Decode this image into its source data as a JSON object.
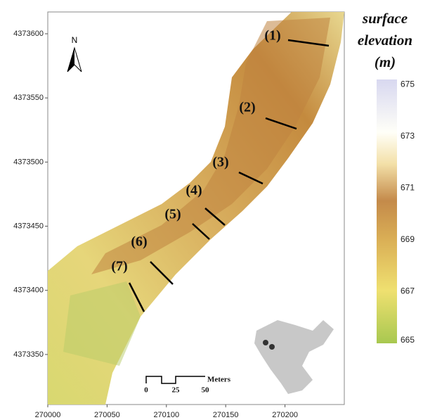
{
  "title": [
    "surface",
    "elevation",
    "(m)"
  ],
  "x_axis": {
    "xlim": [
      270000,
      270250
    ],
    "ticks": [
      270000,
      270050,
      270100,
      270150,
      270200
    ]
  },
  "y_axis": {
    "ylim": [
      4373311,
      4373617
    ],
    "ticks": [
      4373600,
      4373550,
      4373500,
      4373450,
      4373400,
      4373350
    ]
  },
  "colorbar": {
    "range": [
      665,
      675.2
    ],
    "ticks": [
      675,
      673,
      671,
      669,
      667,
      665
    ]
  },
  "profiles": [
    "(1)",
    "(2)",
    "(3)",
    "(4)",
    "(5)",
    "(6)",
    "(7)"
  ],
  "north": "N",
  "scale_bar": {
    "labels": [
      "0",
      "25",
      "50"
    ],
    "unit": "Meters"
  }
}
